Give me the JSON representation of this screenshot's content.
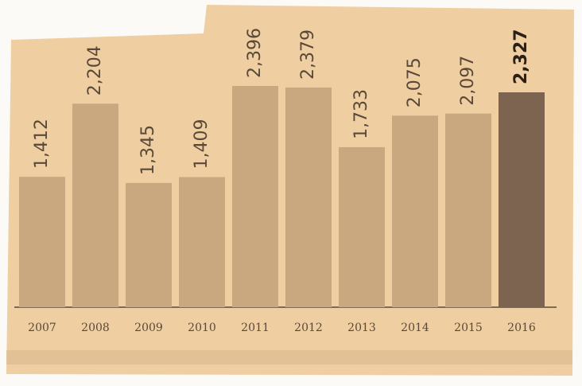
{
  "chart_data": {
    "type": "bar",
    "categories": [
      "2007",
      "2008",
      "2009",
      "2010",
      "2011",
      "2012",
      "2013",
      "2014",
      "2015",
      "2016"
    ],
    "values": [
      1412,
      2204,
      1345,
      1409,
      2396,
      2379,
      1733,
      2075,
      2097,
      2327
    ],
    "value_labels": [
      "1,412",
      "2,204",
      "1,345",
      "1,409",
      "2,396",
      "2,379",
      "1,733",
      "2,075",
      "2,097",
      "2,327"
    ],
    "colors": [
      "#c9a880",
      "#c9a880",
      "#c9a880",
      "#c9a880",
      "#c9a880",
      "#c9a880",
      "#c9a880",
      "#c9a880",
      "#c9a880",
      "#7d6450"
    ]
  }
}
